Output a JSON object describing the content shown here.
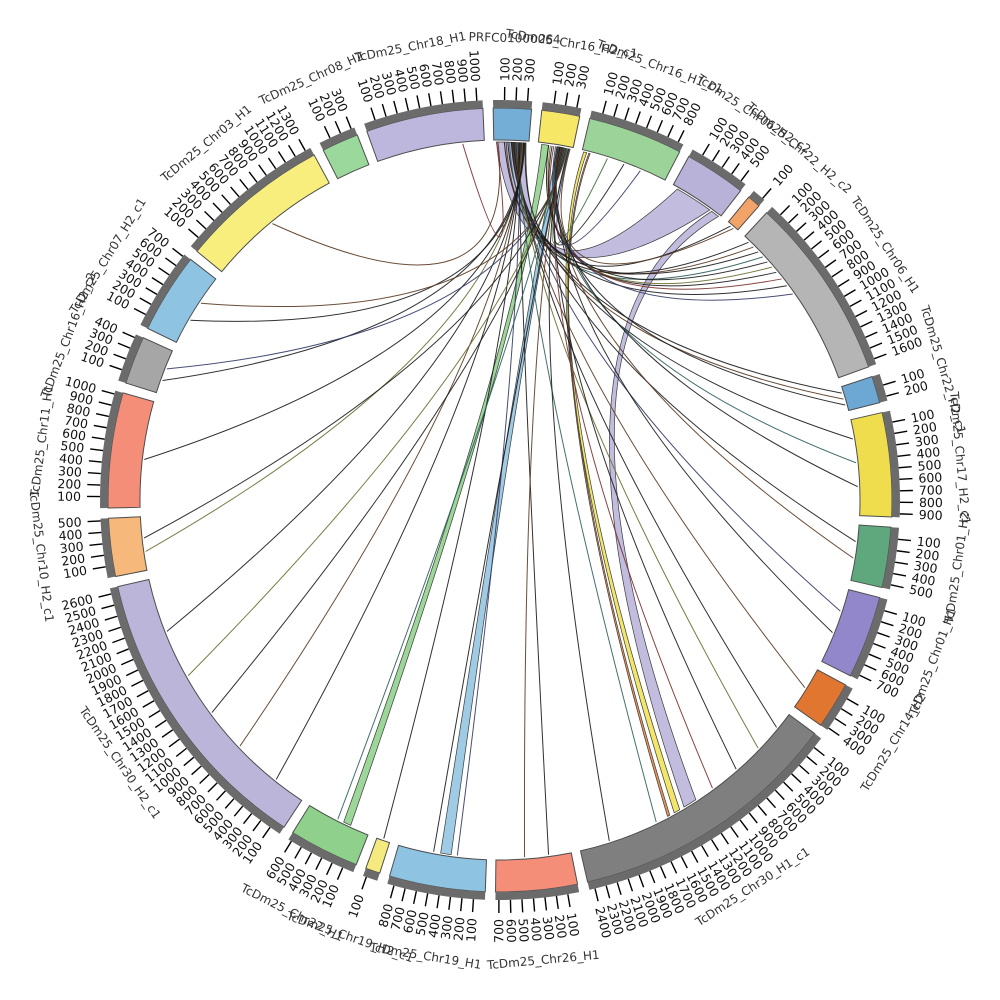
{
  "figure": {
    "background": "#ffffff",
    "kind": "circos chord diagram of genome alignments"
  },
  "chart_data": {
    "type": "chord",
    "tick_interval": 100,
    "styles": {
      "strip_color": "#6b6b6b",
      "band_edge_color": "#4d4d4d",
      "tick_color": "#000000",
      "label_color": "#333333"
    },
    "segments": [
      {
        "label": "PRFC01000064",
        "color": "#74aed6",
        "length": 340,
        "tick_max": 300
      },
      {
        "label": "TcDm25_Chr16_H2_c1",
        "color": "#f6e866",
        "length": 340,
        "tick_max": 300
      },
      {
        "label": "TcDm25_Chr16_H1_c1",
        "color": "#9cd399",
        "length": 850,
        "tick_max": 800
      },
      {
        "label": "TcDm25_Chr06_H2_c2",
        "color": "#b8b1d8",
        "length": 550,
        "tick_max": 500
      },
      {
        "label": "TcDm25_Chr22_H2_c2",
        "color": "#f2a368",
        "length": 120,
        "tick_max": 100
      },
      {
        "label": "TcDm25_Chr06_H1",
        "color": "#b5b5b5",
        "length": 1650,
        "tick_max": 1600
      },
      {
        "label": "TcDm25_Chr22_H2_c1",
        "color": "#6da7d4",
        "length": 240,
        "tick_max": 200
      },
      {
        "label": "TcDm25_Chr17_H2_c1",
        "color": "#f0dd4e",
        "length": 930,
        "tick_max": 900
      },
      {
        "label": "TcDm25_Chr01_H2",
        "color": "#5fa87d",
        "length": 540,
        "tick_max": 500
      },
      {
        "label": "TcDm25_Chr01_H1",
        "color": "#9287cb",
        "length": 740,
        "tick_max": 700
      },
      {
        "label": "TcDm25_Chr14_H2",
        "color": "#e0762f",
        "length": 420,
        "tick_max": 400
      },
      {
        "label": "TcDm25_Chr30_H1_c1",
        "color": "#7f7f7f",
        "length": 2450,
        "tick_max": 2400
      },
      {
        "label": "TcDm25_Chr26_H1",
        "color": "#f58e79",
        "length": 730,
        "tick_max": 700
      },
      {
        "label": "TcDm25_Chr19_H1",
        "color": "#8fc3e2",
        "length": 860,
        "tick_max": 800
      },
      {
        "label": "TcDm25_Chr19_H2_c1",
        "color": "#f4ea7e",
        "length": 130,
        "tick_max": 100
      },
      {
        "label": "TcDm25_Chr22_H1",
        "color": "#8fd08d",
        "length": 630,
        "tick_max": 600
      },
      {
        "label": "TcDm25_Chr30_H2_c1",
        "color": "#bcb5da",
        "length": 2650,
        "tick_max": 2600
      },
      {
        "label": "TcDm25_Chr10_H2_c1",
        "color": "#f6b87b",
        "length": 520,
        "tick_max": 500
      },
      {
        "label": "TcDm25_Chr11_H1",
        "color": "#f58e79",
        "length": 1030,
        "tick_max": 1000
      },
      {
        "label": "TcDm25_Chr16_H2_c2",
        "color": "#a6a6a6",
        "length": 430,
        "tick_max": 400
      },
      {
        "label": "TcDm25_Chr07_H2_c1",
        "color": "#8fc3e2",
        "length": 720,
        "tick_max": 700
      },
      {
        "label": "TcDm25_Chr03_H1",
        "color": "#f8ee7e",
        "length": 1350,
        "tick_max": 1300
      },
      {
        "label": "TcDm25_Chr08_H2",
        "color": "#9bd89b",
        "length": 330,
        "tick_max": 300
      },
      {
        "label": "TcDm25_Chr18_H1",
        "color": "#bdb7dd",
        "length": 1050,
        "tick_max": 1000
      }
    ],
    "ribbons": [
      [
        0,
        0.08,
        0.92,
        3,
        0.1,
        0.78,
        "#b9b3d9"
      ],
      [
        1,
        0.1,
        0.3,
        15,
        0.3,
        0.42,
        "#8ed08b"
      ],
      [
        1,
        0.55,
        0.75,
        13,
        0.4,
        0.52,
        "#92c4e0"
      ],
      [
        3,
        0.82,
        0.97,
        11,
        0.5,
        0.555,
        "#b9b3d9"
      ],
      [
        2,
        0.02,
        0.055,
        11,
        0.575,
        0.6,
        "#f0e355"
      ],
      [
        2,
        0.08,
        0.095,
        11,
        0.62,
        0.63,
        "#e8833f"
      ]
    ],
    "links": [
      [
        0,
        0.3,
        5,
        0.04,
        "#1a1a1a"
      ],
      [
        0,
        0.35,
        5,
        0.08,
        "#5a3a22"
      ],
      [
        0,
        0.4,
        5,
        0.12,
        "#1a1a1a"
      ],
      [
        0,
        0.45,
        5,
        0.16,
        "#2f5f5f"
      ],
      [
        1,
        0.3,
        5,
        0.2,
        "#1a1a1a"
      ],
      [
        1,
        0.35,
        5,
        0.24,
        "#6b6b2f"
      ],
      [
        1,
        0.4,
        5,
        0.28,
        "#1a1a1a"
      ],
      [
        1,
        0.45,
        5,
        0.33,
        "#7a2f2f"
      ],
      [
        0,
        0.5,
        5,
        0.38,
        "#1a1a1a"
      ],
      [
        1,
        0.5,
        5,
        0.44,
        "#333a66"
      ],
      [
        0,
        0.52,
        6,
        0.25,
        "#1a1a1a"
      ],
      [
        0,
        0.54,
        6,
        0.5,
        "#5a3a22"
      ],
      [
        1,
        0.54,
        6,
        0.75,
        "#1a1a1a"
      ],
      [
        0,
        0.56,
        7,
        0.2,
        "#1a1a1a"
      ],
      [
        1,
        0.56,
        7,
        0.45,
        "#2f5f5f"
      ],
      [
        1,
        0.58,
        7,
        0.7,
        "#1a1a1a"
      ],
      [
        0,
        0.58,
        8,
        0.3,
        "#1a1a1a"
      ],
      [
        1,
        0.6,
        8,
        0.6,
        "#5a3a22"
      ],
      [
        0,
        0.6,
        9,
        0.3,
        "#333a66"
      ],
      [
        1,
        0.62,
        9,
        0.6,
        "#1a1a1a"
      ],
      [
        0,
        0.62,
        10,
        0.5,
        "#5a3a22"
      ],
      [
        0,
        0.64,
        11,
        0.07,
        "#1a1a1a"
      ],
      [
        0,
        0.66,
        11,
        0.18,
        "#6b6b2f"
      ],
      [
        1,
        0.64,
        11,
        0.3,
        "#1a1a1a"
      ],
      [
        1,
        0.66,
        11,
        0.42,
        "#7a2f2f"
      ],
      [
        0,
        0.68,
        11,
        0.68,
        "#2f5f5f"
      ],
      [
        1,
        0.68,
        11,
        0.88,
        "#1a1a1a"
      ],
      [
        0,
        0.7,
        12,
        0.3,
        "#1a1a1a"
      ],
      [
        1,
        0.7,
        12,
        0.62,
        "#5a3a22"
      ],
      [
        0,
        0.72,
        13,
        0.33,
        "#333a66"
      ],
      [
        1,
        0.72,
        13,
        0.6,
        "#1a1a1a"
      ],
      [
        0,
        0.74,
        14,
        0.5,
        "#1a1a1a"
      ],
      [
        1,
        0.74,
        15,
        0.52,
        "#2f5f5f"
      ],
      [
        0,
        0.76,
        16,
        0.12,
        "#1a1a1a"
      ],
      [
        0,
        0.78,
        16,
        0.3,
        "#5a3a22"
      ],
      [
        1,
        0.76,
        16,
        0.46,
        "#1a1a1a"
      ],
      [
        1,
        0.78,
        16,
        0.62,
        "#6b6b2f"
      ],
      [
        0,
        0.8,
        16,
        0.8,
        "#1a1a1a"
      ],
      [
        0,
        0.82,
        17,
        0.35,
        "#6b6b2f"
      ],
      [
        1,
        0.8,
        17,
        0.6,
        "#1a1a1a"
      ],
      [
        0,
        0.84,
        18,
        0.45,
        "#1a1a1a"
      ],
      [
        0,
        0.86,
        19,
        0.3,
        "#1a1a1a"
      ],
      [
        1,
        0.82,
        19,
        0.58,
        "#333a66"
      ],
      [
        0,
        0.88,
        20,
        0.35,
        "#1a1a1a"
      ],
      [
        1,
        0.84,
        20,
        0.62,
        "#5a3a22"
      ],
      [
        0,
        0.12,
        21,
        0.5,
        "#5a3a22"
      ],
      [
        0,
        0.08,
        23,
        0.8,
        "#7a2f2f"
      ],
      [
        1,
        0.86,
        2,
        0.3,
        "#3f6f3f"
      ],
      [
        1,
        0.88,
        2,
        0.5,
        "#1a1a1a"
      ],
      [
        1,
        0.9,
        2,
        0.7,
        "#333a66"
      ],
      [
        0,
        0.9,
        4,
        0.35,
        "#1a1a1a"
      ],
      [
        1,
        0.92,
        4,
        0.65,
        "#5a3a22"
      ]
    ]
  }
}
